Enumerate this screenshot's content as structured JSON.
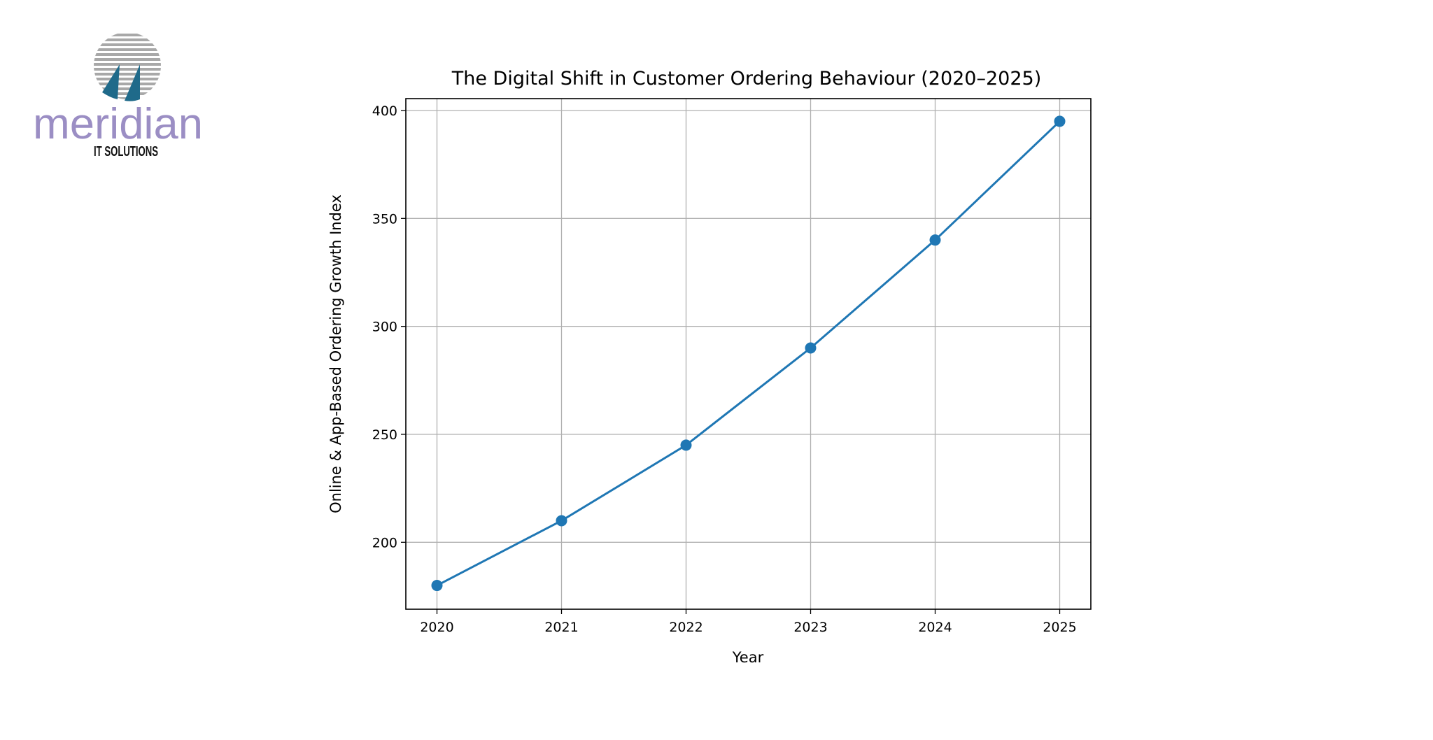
{
  "logo": {
    "name": "meridian",
    "tagline": "IT SOLUTIONS",
    "colors": {
      "text": "#9b8ec4",
      "sail": "#1f6a8a",
      "stripes": "#a8a8a8"
    }
  },
  "chart_data": {
    "type": "line",
    "title": "The Digital Shift in Customer Ordering Behaviour (2020–2025)",
    "xlabel": "Year",
    "ylabel": "Online & App-Based Ordering Growth Index",
    "x": [
      2020,
      2021,
      2022,
      2023,
      2024,
      2025
    ],
    "x_tick_labels": [
      "2020",
      "2021",
      "2022",
      "2023",
      "2024",
      "2025"
    ],
    "y_tick_labels": [
      "200",
      "250",
      "300",
      "350",
      "400"
    ],
    "series": [
      {
        "values": [
          180,
          210,
          245,
          290,
          340,
          395
        ],
        "color": "#1f77b4",
        "marker": "circle"
      }
    ],
    "ylim": [
      169,
      405.5
    ],
    "xlim": [
      2019.75,
      2025.25
    ],
    "grid": true
  }
}
